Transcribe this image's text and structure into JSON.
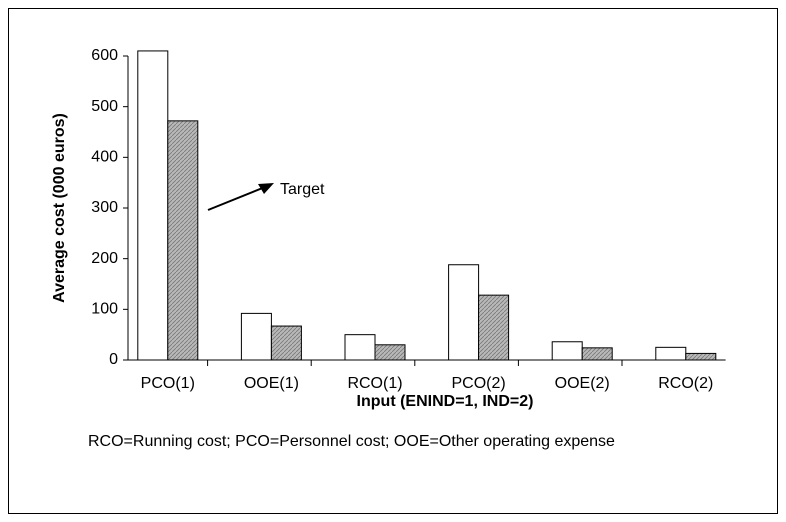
{
  "chart_data": {
    "type": "bar",
    "y_label": "Average cost (000 euros)",
    "x_label": "Input (ENIND=1, IND=2)",
    "note": "RCO=Running cost;  PCO=Personnel cost; OOE=Other operating expense",
    "annotation": "Target",
    "categories": [
      "PCO(1)",
      "OOE(1)",
      "RCO(1)",
      "PCO(2)",
      "OOE(2)",
      "RCO(2)"
    ],
    "series": [
      {
        "color": "#ffffff",
        "values": [
          610,
          92,
          50,
          188,
          36,
          25
        ]
      },
      {
        "color": "#b8b8b8",
        "values": [
          472,
          67,
          30,
          128,
          24,
          13
        ]
      }
    ],
    "ylim": [
      0,
      600
    ],
    "yticks": [
      0,
      100,
      200,
      300,
      400,
      500,
      600
    ]
  }
}
